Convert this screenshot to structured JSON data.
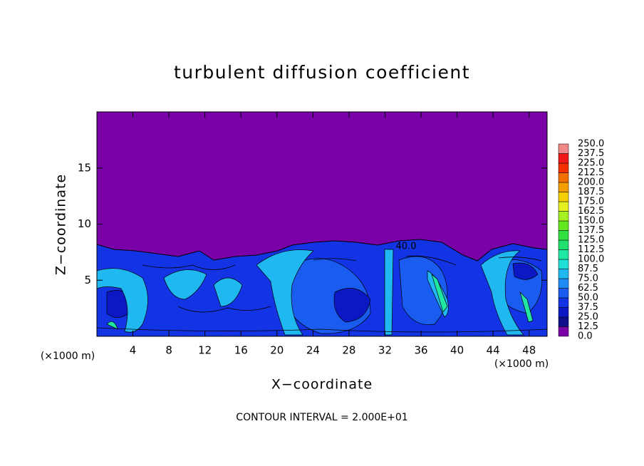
{
  "chart_data": {
    "type": "contour",
    "title": "turbulent diffusion coefficient",
    "xlabel": "X−coordinate",
    "ylabel": "Z−coordinate",
    "x_unit": "(×1000 m)",
    "y_unit": "(×1000 m)",
    "note": "CONTOUR INTERVAL = 2.000E+01",
    "annotations": [
      "40.0"
    ],
    "xlim": [
      0,
      50
    ],
    "ylim": [
      0,
      20
    ],
    "xticks": [
      4,
      8,
      12,
      16,
      20,
      24,
      28,
      32,
      36,
      40,
      44,
      48
    ],
    "yticks": [
      5,
      10,
      15
    ],
    "colorbar": {
      "levels": [
        {
          "value": 0,
          "label": "0.0"
        },
        {
          "value": 12.5,
          "label": "12.5"
        },
        {
          "value": 25,
          "label": "25.0"
        },
        {
          "value": 37.5,
          "label": "37.5"
        },
        {
          "value": 50,
          "label": "50.0"
        },
        {
          "value": 62.5,
          "label": "62.5"
        },
        {
          "value": 75,
          "label": "75.0"
        },
        {
          "value": 87.5,
          "label": "87.5"
        },
        {
          "value": 100,
          "label": "100.0"
        },
        {
          "value": 112.5,
          "label": "112.5"
        },
        {
          "value": 125,
          "label": "125.0"
        },
        {
          "value": 137.5,
          "label": "137.5"
        },
        {
          "value": 150,
          "label": "150.0"
        },
        {
          "value": 162.5,
          "label": "162.5"
        },
        {
          "value": 175,
          "label": "175.0"
        },
        {
          "value": 187.5,
          "label": "187.5"
        },
        {
          "value": 200,
          "label": "200.0"
        },
        {
          "value": 212.5,
          "label": "212.5"
        },
        {
          "value": 225,
          "label": "225.0"
        },
        {
          "value": 237.5,
          "label": "237.5"
        },
        {
          "value": 250,
          "label": "250.0"
        }
      ],
      "colors": [
        "#7a00a8",
        "#10108c",
        "#0c18c4",
        "#1234e4",
        "#1a5cf0",
        "#1e8cf4",
        "#20b8f0",
        "#20e0d8",
        "#20e8a4",
        "#20e070",
        "#30e040",
        "#64e820",
        "#a4f020",
        "#e4f020",
        "#f4d000",
        "#f4a000",
        "#f47000",
        "#f43000",
        "#f01818",
        "#f08888"
      ]
    }
  }
}
